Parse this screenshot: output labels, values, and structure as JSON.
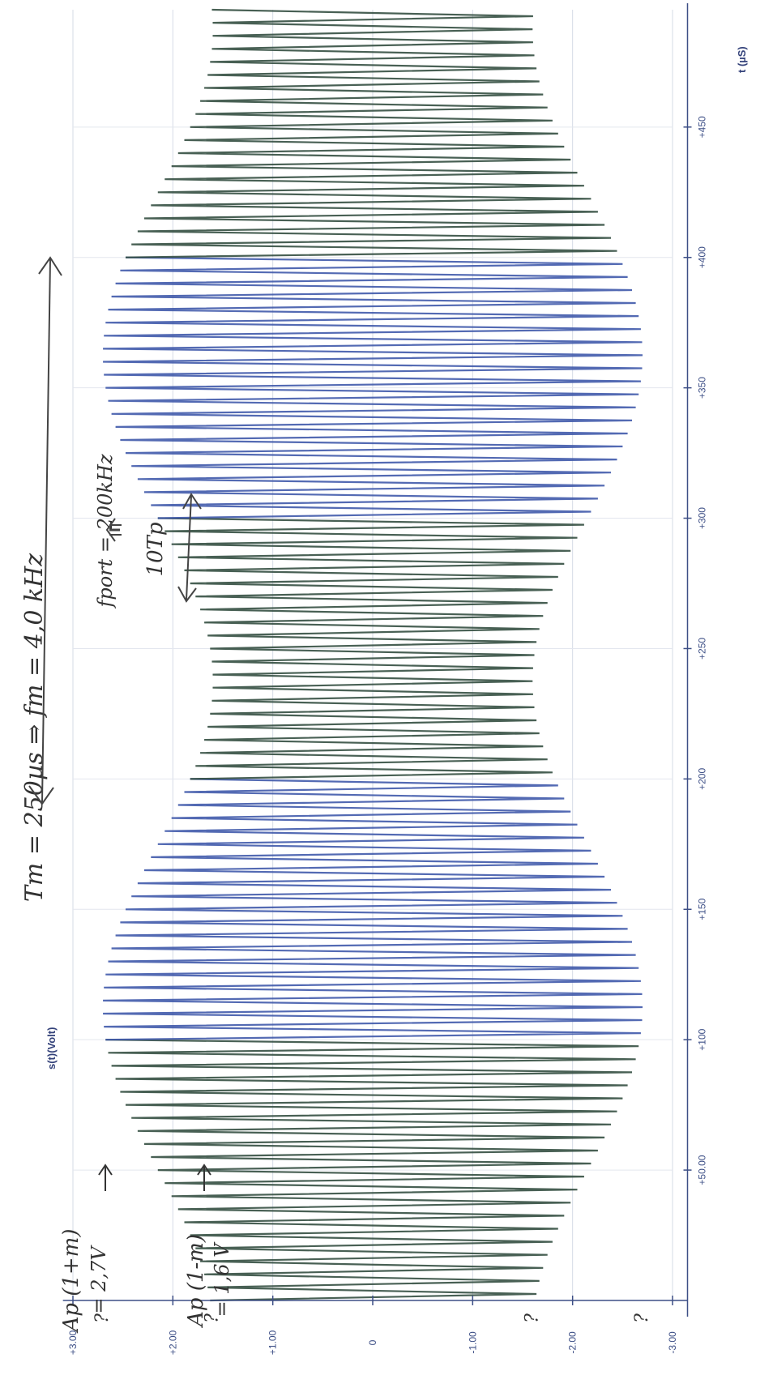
{
  "chart_data": {
    "type": "line",
    "orientation": "rotated-90-clockwise",
    "xlabel": "t (µS)",
    "ylabel": "s(t)(Volt)",
    "xlim": [
      0,
      495
    ],
    "ylim": [
      -3.0,
      3.0
    ],
    "x_ticks": [
      "+50.00",
      "+100",
      "+150",
      "+200",
      "+250",
      "+300",
      "+350",
      "+400",
      "+450"
    ],
    "x_tick_values": [
      50,
      100,
      150,
      200,
      250,
      300,
      350,
      400,
      450
    ],
    "y_ticks": [
      "+3.00",
      "+2.00",
      "+1.00",
      "0",
      "-1.00",
      "-2.00",
      "-3.00"
    ],
    "y_tick_values": [
      3,
      2,
      1,
      0,
      -1,
      -2,
      -3
    ],
    "grid": true,
    "signal": {
      "model": "AM",
      "carrier_frequency_khz": 200,
      "modulation_frequency_khz": 4,
      "amplitude_max": 2.7,
      "amplitude_min": 1.6,
      "max_envelope_times_us": [
        112.5,
        362.5
      ],
      "min_envelope_times_us": [
        237.5
      ],
      "duration_us": 495,
      "colors": [
        "#2f4a3c",
        "#3b55a8"
      ]
    },
    "question_marks": [
      {
        "y": 2.7,
        "text": "?"
      },
      {
        "y": 1.6,
        "text": "?"
      },
      {
        "y": -1.6,
        "text": "?"
      },
      {
        "y": -2.7,
        "text": "?"
      }
    ],
    "annotations": {
      "period": "Tm = 250µs  ⇒ fm = 4,0 kHz",
      "carrier": "fport = 200kHz",
      "ten_tp": "10Tp",
      "amp_max_line1": "Ap (1+m)",
      "amp_max_line2": "= 2,7V",
      "amp_min_line1": "Ap (1-m)",
      "amp_min_line2": "= 1,6 V"
    }
  }
}
